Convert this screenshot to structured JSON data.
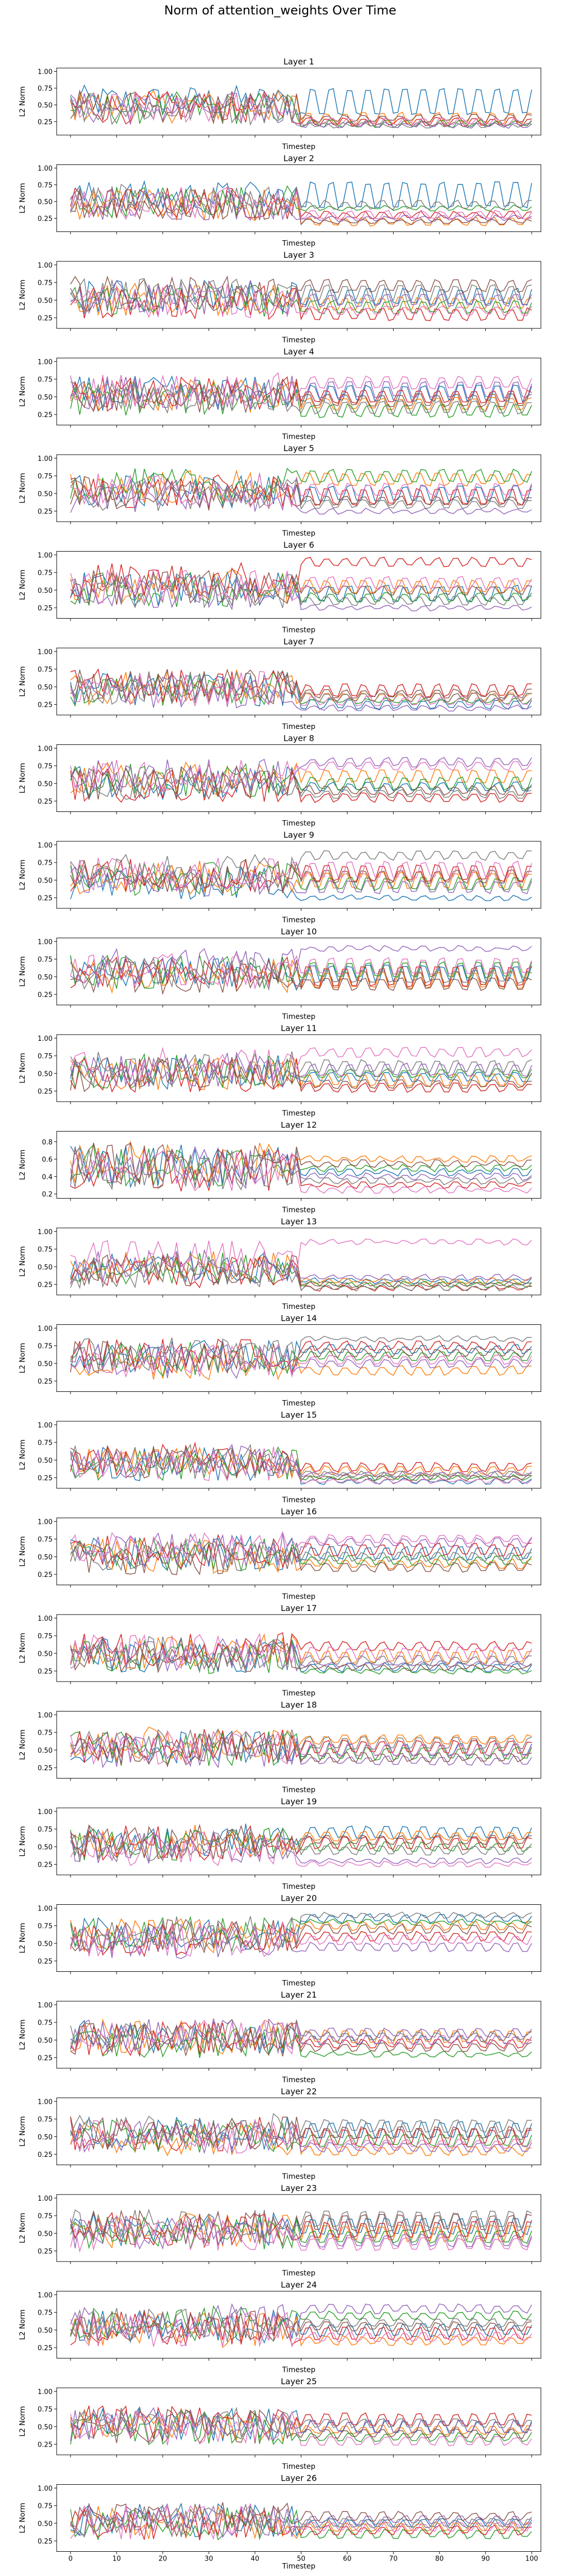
{
  "figure": {
    "title": "Norm of attention_weights Over Time"
  },
  "chart_data": {
    "type": "line",
    "xlabel": "Timestep",
    "ylabel": "L2 Norm",
    "xlim": [
      -3,
      102
    ],
    "x_ticks": [
      0,
      10,
      20,
      30,
      40,
      50,
      60,
      70,
      80,
      90,
      100
    ],
    "series_colors": [
      "#1f77b4",
      "#ff7f0e",
      "#2ca02c",
      "#d62728",
      "#9467bd",
      "#8c564b",
      "#e377c2",
      "#7f7f7f"
    ],
    "panels": [
      {
        "title": "Layer 1",
        "ylim": [
          0.05,
          1.05
        ],
        "y_ticks": [
          0.25,
          0.5,
          0.75,
          1.0
        ],
        "y_tick_labels": [
          "0.25",
          "0.50",
          "0.75",
          "1.00"
        ],
        "levels": [
          0.55,
          0.3,
          0.22,
          0.25,
          0.2,
          0.3,
          0.25,
          0.2
        ],
        "amps": [
          0.35,
          0.15,
          0.08,
          0.1,
          0.06,
          0.08,
          0.08,
          0.05
        ]
      },
      {
        "title": "Layer 2",
        "ylim": [
          0.05,
          1.05
        ],
        "y_ticks": [
          0.25,
          0.5,
          0.75,
          1.0
        ],
        "y_tick_labels": [
          "0.25",
          "0.50",
          "0.75",
          "1.00"
        ],
        "levels": [
          0.6,
          0.2,
          0.4,
          0.3,
          0.25,
          0.2,
          0.3,
          0.45
        ],
        "amps": [
          0.35,
          0.1,
          0.05,
          0.08,
          0.05,
          0.05,
          0.1,
          0.1
        ]
      },
      {
        "title": "Layer 3",
        "ylim": [
          0.1,
          1.05
        ],
        "y_ticks": [
          0.25,
          0.5,
          0.75,
          1.0
        ],
        "y_tick_labels": [
          "0.25",
          "0.50",
          "0.75",
          "1.00"
        ],
        "levels": [
          0.55,
          0.45,
          0.4,
          0.3,
          0.5,
          0.7,
          0.35,
          0.6
        ],
        "amps": [
          0.2,
          0.15,
          0.15,
          0.15,
          0.15,
          0.15,
          0.1,
          0.2
        ]
      },
      {
        "title": "Layer 4",
        "ylim": [
          0.1,
          1.05
        ],
        "y_ticks": [
          0.25,
          0.5,
          0.75,
          1.0
        ],
        "y_tick_labels": [
          "0.25",
          "0.50",
          "0.75",
          "1.00"
        ],
        "levels": [
          0.55,
          0.4,
          0.3,
          0.5,
          0.6,
          0.45,
          0.7,
          0.35
        ],
        "amps": [
          0.2,
          0.15,
          0.15,
          0.15,
          0.2,
          0.15,
          0.15,
          0.15
        ]
      },
      {
        "title": "Layer 5",
        "ylim": [
          0.1,
          1.05
        ],
        "y_ticks": [
          0.25,
          0.5,
          0.75,
          1.0
        ],
        "y_tick_labels": [
          "0.25",
          "0.50",
          "0.75",
          "1.00"
        ],
        "levels": [
          0.5,
          0.7,
          0.75,
          0.45,
          0.25,
          0.4,
          0.55,
          0.35
        ],
        "amps": [
          0.2,
          0.15,
          0.15,
          0.2,
          0.05,
          0.1,
          0.15,
          0.1
        ]
      },
      {
        "title": "Layer 6",
        "ylim": [
          0.1,
          1.05
        ],
        "y_ticks": [
          0.25,
          0.5,
          0.75,
          1.0
        ],
        "y_tick_labels": [
          "0.25",
          "0.50",
          "0.75",
          "1.00"
        ],
        "levels": [
          0.45,
          0.55,
          0.4,
          0.9,
          0.25,
          0.5,
          0.6,
          0.35
        ],
        "amps": [
          0.2,
          0.15,
          0.1,
          0.1,
          0.05,
          0.1,
          0.15,
          0.1
        ]
      },
      {
        "title": "Layer 7",
        "ylim": [
          0.1,
          1.05
        ],
        "y_ticks": [
          0.25,
          0.5,
          0.75,
          1.0
        ],
        "y_tick_labels": [
          "0.25",
          "0.50",
          "0.75",
          "1.00"
        ],
        "levels": [
          0.25,
          0.35,
          0.3,
          0.45,
          0.2,
          0.4,
          0.3,
          0.35
        ],
        "amps": [
          0.1,
          0.1,
          0.05,
          0.15,
          0.05,
          0.1,
          0.1,
          0.1
        ]
      },
      {
        "title": "Layer 8",
        "ylim": [
          0.1,
          1.05
        ],
        "y_ticks": [
          0.25,
          0.5,
          0.75,
          1.0
        ],
        "y_tick_labels": [
          "0.25",
          "0.50",
          "0.75",
          "1.00"
        ],
        "levels": [
          0.45,
          0.6,
          0.5,
          0.3,
          0.8,
          0.4,
          0.75,
          0.35
        ],
        "amps": [
          0.1,
          0.15,
          0.15,
          0.1,
          0.1,
          0.1,
          0.1,
          0.1
        ]
      },
      {
        "title": "Layer 9",
        "ylim": [
          0.1,
          1.05
        ],
        "y_ticks": [
          0.25,
          0.5,
          0.75,
          1.0
        ],
        "y_tick_labels": [
          "0.25",
          "0.50",
          "0.75",
          "1.00"
        ],
        "levels": [
          0.25,
          0.5,
          0.45,
          0.6,
          0.4,
          0.55,
          0.65,
          0.85
        ],
        "amps": [
          0.05,
          0.2,
          0.15,
          0.2,
          0.15,
          0.15,
          0.2,
          0.1
        ]
      },
      {
        "title": "Layer 10",
        "ylim": [
          0.1,
          1.05
        ],
        "y_ticks": [
          0.25,
          0.5,
          0.75,
          1.0
        ],
        "y_tick_labels": [
          "0.25",
          "0.50",
          "0.75",
          "1.00"
        ],
        "levels": [
          0.55,
          0.45,
          0.6,
          0.5,
          0.9,
          0.4,
          0.65,
          0.5
        ],
        "amps": [
          0.2,
          0.2,
          0.2,
          0.25,
          0.05,
          0.15,
          0.2,
          0.15
        ]
      },
      {
        "title": "Layer 11",
        "ylim": [
          0.1,
          1.05
        ],
        "y_ticks": [
          0.25,
          0.5,
          0.75,
          1.0
        ],
        "y_tick_labels": [
          "0.25",
          "0.50",
          "0.75",
          "1.00"
        ],
        "levels": [
          0.45,
          0.4,
          0.5,
          0.3,
          0.55,
          0.35,
          0.8,
          0.6
        ],
        "amps": [
          0.1,
          0.15,
          0.1,
          0.1,
          0.15,
          0.1,
          0.1,
          0.15
        ]
      },
      {
        "title": "Layer 12",
        "ylim": [
          0.15,
          0.92
        ],
        "y_ticks": [
          0.2,
          0.4,
          0.6,
          0.8
        ],
        "y_tick_labels": [
          "0.2",
          "0.4",
          "0.6",
          "0.8"
        ],
        "levels": [
          0.45,
          0.6,
          0.5,
          0.3,
          0.4,
          0.55,
          0.25,
          0.35
        ],
        "amps": [
          0.05,
          0.05,
          0.05,
          0.05,
          0.05,
          0.05,
          0.05,
          0.05
        ]
      },
      {
        "title": "Layer 13",
        "ylim": [
          0.1,
          1.05
        ],
        "y_ticks": [
          0.25,
          0.5,
          0.75,
          1.0
        ],
        "y_tick_labels": [
          "0.25",
          "0.50",
          "0.75",
          "1.00"
        ],
        "levels": [
          0.3,
          0.3,
          0.25,
          0.2,
          0.35,
          0.25,
          0.85,
          0.2
        ],
        "amps": [
          0.05,
          0.05,
          0.05,
          0.05,
          0.05,
          0.05,
          0.05,
          0.05
        ]
      },
      {
        "title": "Layer 14",
        "ylim": [
          0.1,
          1.05
        ],
        "y_ticks": [
          0.25,
          0.5,
          0.75,
          1.0
        ],
        "y_tick_labels": [
          "0.25",
          "0.50",
          "0.75",
          "1.00"
        ],
        "levels": [
          0.7,
          0.4,
          0.6,
          0.75,
          0.5,
          0.65,
          0.55,
          0.85
        ],
        "amps": [
          0.1,
          0.1,
          0.1,
          0.1,
          0.1,
          0.1,
          0.1,
          0.05
        ]
      },
      {
        "title": "Layer 15",
        "ylim": [
          0.1,
          1.05
        ],
        "y_ticks": [
          0.25,
          0.5,
          0.75,
          1.0
        ],
        "y_tick_labels": [
          "0.25",
          "0.50",
          "0.75",
          "1.00"
        ],
        "levels": [
          0.2,
          0.35,
          0.25,
          0.4,
          0.3,
          0.25,
          0.2,
          0.3
        ],
        "amps": [
          0.05,
          0.1,
          0.05,
          0.1,
          0.05,
          0.05,
          0.05,
          0.05
        ]
      },
      {
        "title": "Layer 16",
        "ylim": [
          0.1,
          1.05
        ],
        "y_ticks": [
          0.25,
          0.5,
          0.75,
          1.0
        ],
        "y_tick_labels": [
          "0.25",
          "0.50",
          "0.75",
          "1.00"
        ],
        "levels": [
          0.55,
          0.4,
          0.45,
          0.6,
          0.7,
          0.35,
          0.75,
          0.5
        ],
        "amps": [
          0.15,
          0.1,
          0.1,
          0.15,
          0.1,
          0.1,
          0.1,
          0.1
        ]
      },
      {
        "title": "Layer 17",
        "ylim": [
          0.1,
          1.05
        ],
        "y_ticks": [
          0.25,
          0.5,
          0.75,
          1.0
        ],
        "y_tick_labels": [
          "0.25",
          "0.50",
          "0.75",
          "1.00"
        ],
        "levels": [
          0.3,
          0.45,
          0.25,
          0.6,
          0.35,
          0.3,
          0.5,
          0.4
        ],
        "amps": [
          0.1,
          0.15,
          0.05,
          0.1,
          0.05,
          0.05,
          0.15,
          0.1
        ]
      },
      {
        "title": "Layer 18",
        "ylim": [
          0.1,
          1.05
        ],
        "y_ticks": [
          0.25,
          0.5,
          0.75,
          1.0
        ],
        "y_tick_labels": [
          "0.25",
          "0.50",
          "0.75",
          "1.00"
        ],
        "levels": [
          0.5,
          0.65,
          0.45,
          0.55,
          0.35,
          0.4,
          0.5,
          0.6
        ],
        "amps": [
          0.15,
          0.1,
          0.15,
          0.15,
          0.1,
          0.1,
          0.15,
          0.15
        ]
      },
      {
        "title": "Layer 19",
        "ylim": [
          0.1,
          1.05
        ],
        "y_ticks": [
          0.25,
          0.5,
          0.75,
          1.0
        ],
        "y_tick_labels": [
          "0.25",
          "0.50",
          "0.75",
          "1.00"
        ],
        "levels": [
          0.7,
          0.65,
          0.5,
          0.55,
          0.3,
          0.6,
          0.25,
          0.45
        ],
        "amps": [
          0.15,
          0.1,
          0.1,
          0.15,
          0.05,
          0.1,
          0.05,
          0.1
        ]
      },
      {
        "title": "Layer 20",
        "ylim": [
          0.1,
          1.05
        ],
        "y_ticks": [
          0.25,
          0.5,
          0.75,
          1.0
        ],
        "y_tick_labels": [
          "0.25",
          "0.50",
          "0.75",
          "1.00"
        ],
        "levels": [
          0.85,
          0.75,
          0.8,
          0.6,
          0.45,
          0.7,
          0.55,
          0.9
        ],
        "amps": [
          0.1,
          0.1,
          0.05,
          0.1,
          0.1,
          0.1,
          0.1,
          0.05
        ]
      },
      {
        "title": "Layer 21",
        "ylim": [
          0.1,
          1.05
        ],
        "y_ticks": [
          0.25,
          0.5,
          0.75,
          1.0
        ],
        "y_tick_labels": [
          "0.25",
          "0.50",
          "0.75",
          "1.00"
        ],
        "levels": [
          0.5,
          0.55,
          0.3,
          0.45,
          0.6,
          0.4,
          0.5,
          0.55
        ],
        "amps": [
          0.1,
          0.15,
          0.05,
          0.1,
          0.1,
          0.1,
          0.1,
          0.1
        ]
      },
      {
        "title": "Layer 22",
        "ylim": [
          0.1,
          1.05
        ],
        "y_ticks": [
          0.25,
          0.5,
          0.75,
          1.0
        ],
        "y_tick_labels": [
          "0.25",
          "0.50",
          "0.75",
          "1.00"
        ],
        "levels": [
          0.6,
          0.3,
          0.45,
          0.5,
          0.35,
          0.55,
          0.4,
          0.65
        ],
        "amps": [
          0.2,
          0.1,
          0.15,
          0.2,
          0.1,
          0.15,
          0.1,
          0.15
        ]
      },
      {
        "title": "Layer 23",
        "ylim": [
          0.1,
          1.05
        ],
        "y_ticks": [
          0.25,
          0.5,
          0.75,
          1.0
        ],
        "y_tick_labels": [
          "0.25",
          "0.50",
          "0.75",
          "1.00"
        ],
        "levels": [
          0.6,
          0.5,
          0.45,
          0.55,
          0.4,
          0.65,
          0.35,
          0.7
        ],
        "amps": [
          0.2,
          0.2,
          0.15,
          0.2,
          0.15,
          0.2,
          0.15,
          0.2
        ]
      },
      {
        "title": "Layer 24",
        "ylim": [
          0.1,
          1.05
        ],
        "y_ticks": [
          0.25,
          0.5,
          0.75,
          1.0
        ],
        "y_tick_labels": [
          "0.25",
          "0.50",
          "0.75",
          "1.00"
        ],
        "levels": [
          0.5,
          0.35,
          0.7,
          0.45,
          0.8,
          0.55,
          0.4,
          0.6
        ],
        "amps": [
          0.15,
          0.1,
          0.1,
          0.15,
          0.1,
          0.1,
          0.1,
          0.1
        ]
      },
      {
        "title": "Layer 25",
        "ylim": [
          0.1,
          1.05
        ],
        "y_ticks": [
          0.25,
          0.5,
          0.75,
          1.0
        ],
        "y_tick_labels": [
          "0.25",
          "0.50",
          "0.75",
          "1.00"
        ],
        "levels": [
          0.5,
          0.45,
          0.35,
          0.6,
          0.5,
          0.4,
          0.3,
          0.55
        ],
        "amps": [
          0.15,
          0.1,
          0.1,
          0.15,
          0.15,
          0.1,
          0.1,
          0.1
        ]
      },
      {
        "title": "Layer 26",
        "ylim": [
          0.1,
          1.05
        ],
        "y_ticks": [
          0.25,
          0.5,
          0.75,
          1.0
        ],
        "y_tick_labels": [
          "0.25",
          "0.50",
          "0.75",
          "1.00"
        ],
        "levels": [
          0.5,
          0.45,
          0.35,
          0.4,
          0.55,
          0.6,
          0.45,
          0.5
        ],
        "amps": [
          0.1,
          0.1,
          0.1,
          0.1,
          0.1,
          0.1,
          0.1,
          0.1
        ]
      }
    ]
  }
}
